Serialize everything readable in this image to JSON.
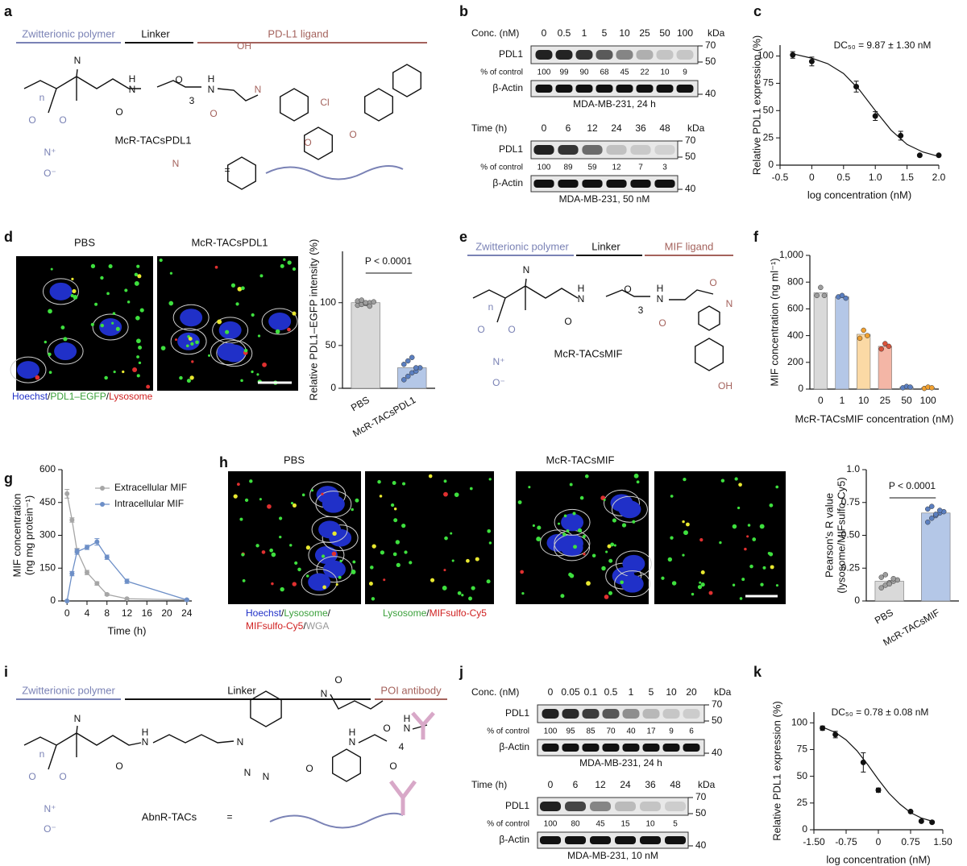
{
  "panels": [
    "a",
    "b",
    "c",
    "d",
    "e",
    "f",
    "g",
    "h",
    "i",
    "j",
    "k"
  ],
  "structures": [
    {
      "headers": [
        "Zwitterionic polymer",
        "Linker",
        "PD-L1 ligand"
      ],
      "name": "McR-TACsPDL1",
      "atoms": [
        "n",
        "N",
        "O",
        "O",
        "O",
        "N",
        "H",
        "O",
        "3",
        "N",
        "H",
        "O",
        "OH",
        "N",
        "Cl",
        "O",
        "O",
        "N",
        "N⁺",
        "O⁻",
        "="
      ]
    },
    {
      "headers": [
        "Zwitterionic polymer",
        "Linker",
        "MIF ligand"
      ],
      "name": "McR-TACsMIF",
      "atoms": [
        "n",
        "N",
        "O",
        "O",
        "O",
        "N",
        "H",
        "O",
        "3",
        "N",
        "H",
        "O",
        "O",
        "N",
        "OH",
        "N⁺",
        "O⁻"
      ]
    },
    {
      "headers": [
        "Zwitterionic polymer",
        "Linker",
        "POI antibody"
      ],
      "name": "AbnR-TACs",
      "atoms": [
        "n",
        "N",
        "O",
        "O",
        "O",
        "N",
        "H",
        "N",
        "N",
        "N",
        "N",
        "O",
        "O",
        "N",
        "H",
        "O",
        "4",
        "O",
        "N",
        "H",
        "N⁺",
        "O⁻",
        "="
      ]
    }
  ],
  "blots": [
    {
      "header": "Conc. (nM)",
      "lanes": [
        0,
        0.5,
        1,
        5,
        10,
        25,
        50,
        100
      ],
      "unit": "kDa",
      "target": "PDL1",
      "percent_label": "% of control",
      "percents": [
        100,
        99,
        90,
        68,
        45,
        22,
        10,
        9
      ],
      "loading": "β-Actin",
      "caption": "MDA-MB-231, 24 h",
      "markers": [
        70,
        50,
        40
      ]
    },
    {
      "header": "Time (h)",
      "lanes": [
        0,
        6,
        12,
        24,
        36,
        48
      ],
      "unit": "kDa",
      "target": "PDL1",
      "percent_label": "% of control",
      "percents": [
        100,
        89,
        59,
        12,
        7,
        3
      ],
      "loading": "β-Actin",
      "caption": "MDA-MB-231, 50 nM",
      "markers": [
        70,
        50,
        40
      ]
    },
    {
      "header": "Conc. (nM)",
      "lanes": [
        0,
        0.05,
        0.1,
        0.5,
        1,
        5,
        10,
        20
      ],
      "unit": "kDa",
      "target": "PDL1",
      "percent_label": "% of control",
      "percents": [
        100,
        95,
        85,
        70,
        40,
        17,
        9,
        6
      ],
      "loading": "β-Actin",
      "caption": "MDA-MB-231, 24 h",
      "markers": [
        70,
        50,
        40
      ]
    },
    {
      "header": "Time (h)",
      "lanes": [
        0,
        6,
        12,
        24,
        36,
        48
      ],
      "unit": "kDa",
      "target": "PDL1",
      "percent_label": "% of control",
      "percents": [
        100,
        80,
        45,
        15,
        10,
        5
      ],
      "loading": "β-Actin",
      "caption": "MDA-MB-231, 10 nM",
      "markers": [
        70,
        50,
        40
      ]
    }
  ],
  "microscopy": {
    "d": {
      "titles": [
        "PBS",
        "McR-TACsPDL1"
      ],
      "captions": [
        [
          "Hoechst",
          "/",
          "PDL1–EGFP",
          "/",
          "Lysosome"
        ]
      ]
    },
    "h": {
      "titles": [
        "PBS",
        "McR-TACsMIF"
      ],
      "captions": [
        [
          "Hoechst",
          "/",
          "Lysosome",
          "/"
        ],
        [
          "MIFsulfo-Cy5",
          "/",
          "WGA"
        ],
        [
          "Lysosome",
          "/",
          "MIFsulfo-Cy5"
        ]
      ]
    }
  },
  "chart_data": [
    {
      "type": "scatter",
      "xlabel": "log concentration (nM)",
      "ylabel": "Relative PDL1 expression (%)",
      "annotation": "DC₅₀ = 9.87 ± 1.30 nM",
      "x": [
        -0.3,
        0,
        0.7,
        1,
        1.4,
        1.7,
        2
      ],
      "values": [
        101,
        95,
        72,
        45,
        27,
        9,
        9
      ],
      "errors": [
        3,
        4,
        5,
        4,
        4,
        1,
        1
      ],
      "color": "#111111",
      "fit": {
        "x": [
          -0.3,
          0,
          0.25,
          0.5,
          0.75,
          1,
          1.25,
          1.5,
          1.75,
          2
        ],
        "values": [
          102,
          98,
          93,
          84,
          69,
          50,
          32,
          19,
          12,
          8
        ]
      },
      "xlim": [
        -0.5,
        2
      ],
      "xticks": [
        -0.5,
        0,
        0.5,
        {
          "value": 1,
          "label": "1.0"
        },
        1.5,
        {
          "value": 2,
          "label": "2.0"
        }
      ],
      "ylim": [
        0,
        110
      ],
      "yticks": [
        0,
        25,
        50,
        75,
        100
      ]
    },
    {
      "type": "bar",
      "ylabel": "Relative PDL1–EGFP intensity (%)",
      "annotation": "P < 0.0001",
      "categories": [
        "PBS",
        "McR-TACsPDL1"
      ],
      "values": [
        100,
        24
      ],
      "colors": [
        "#d9d9d9",
        "#b4c7e7"
      ],
      "point_colors": [
        "#9e9e9e",
        "#5b7fc0"
      ],
      "points": [
        [
          97,
          98,
          99,
          100,
          101,
          102,
          103,
          100,
          96
        ],
        [
          10,
          14,
          18,
          20,
          24,
          28,
          32,
          36,
          24
        ]
      ],
      "ylim": [
        0,
        160
      ],
      "yticks": [
        0,
        50,
        100
      ]
    },
    {
      "type": "bar",
      "xlabel": "McR-TACsMIF concentration (nM)",
      "ylabel": "MIF concentration (ng ml⁻¹)",
      "categories": [
        "0",
        "1",
        "10",
        "25",
        "50",
        "100"
      ],
      "values": [
        720,
        690,
        410,
        320,
        15,
        10
      ],
      "colors": [
        "#d9d9d9",
        "#b4c7e7",
        "#fbd9a5",
        "#f4b6a6",
        "#b4c7e7",
        "#fbd9a5"
      ],
      "point_colors": [
        "#9e9e9e",
        "#5b7fc0",
        "#f0a030",
        "#d9533b",
        "#5b7fc0",
        "#f0a030"
      ],
      "points": [
        [
          700,
          760,
          700
        ],
        [
          690,
          700,
          680
        ],
        [
          380,
          440,
          400
        ],
        [
          300,
          340,
          320
        ],
        [
          10,
          20,
          15
        ],
        [
          5,
          15,
          10
        ]
      ],
      "ylim": [
        0,
        1000
      ],
      "yticks": [
        0,
        200,
        400,
        600,
        800,
        {
          "value": 1000,
          "label": "1,000"
        }
      ]
    },
    {
      "type": "line",
      "xlabel": "Time (h)",
      "ylabel": [
        "MIF concentration",
        "(ng mg protein⁻¹)"
      ],
      "legend": "upper right",
      "x": [
        0,
        1,
        2,
        4,
        6,
        8,
        12,
        24
      ],
      "series": [
        {
          "name": "Extracellular MIF",
          "color": "#a6a6a6",
          "values": [
            490,
            370,
            230,
            130,
            80,
            30,
            10,
            5
          ],
          "errors": [
            20,
            10,
            10,
            10,
            8,
            5,
            3,
            3
          ]
        },
        {
          "name": "Intracellular MIF",
          "color": "#6d8fc7",
          "values": [
            0,
            125,
            225,
            245,
            270,
            200,
            90,
            5
          ],
          "errors": [
            0,
            10,
            12,
            10,
            15,
            10,
            10,
            3
          ]
        }
      ],
      "xlim": [
        -1,
        25
      ],
      "xticks": [
        0,
        4,
        8,
        12,
        16,
        20,
        24
      ],
      "ylim": [
        0,
        600
      ],
      "yticks": [
        0,
        150,
        300,
        450,
        600
      ]
    },
    {
      "type": "bar",
      "ylabel": [
        "Pearson's R value",
        "(lysosome/MIFsulfo-Cy5)"
      ],
      "annotation": "P < 0.0001",
      "categories": [
        "PBS",
        "McR-TACsMIF"
      ],
      "values": [
        0.15,
        0.67
      ],
      "colors": [
        "#d9d9d9",
        "#b4c7e7"
      ],
      "point_colors": [
        "#9e9e9e",
        "#5b7fc0"
      ],
      "points": [
        [
          0.1,
          0.12,
          0.14,
          0.15,
          0.16,
          0.18,
          0.2,
          0.13,
          0.17
        ],
        [
          0.6,
          0.63,
          0.65,
          0.67,
          0.68,
          0.7,
          0.72,
          0.66,
          0.69
        ]
      ],
      "ylim": [
        0,
        1
      ],
      "yticks": [
        0,
        0.25,
        {
          "value": 0.5,
          "label": "0.50"
        },
        0.75,
        {
          "value": 1,
          "label": "1.0"
        }
      ]
    },
    {
      "type": "scatter",
      "xlabel": "log concentration (nM)",
      "ylabel": "Relative PDL1 expression (%)",
      "annotation": "DC₅₀ = 0.78 ± 0.08 nM",
      "x": [
        -1.3,
        -1,
        -0.35,
        0,
        0.75,
        1,
        1.25
      ],
      "values": [
        95,
        89,
        63,
        37,
        17,
        8,
        7
      ],
      "errors": [
        2,
        3,
        9,
        2,
        1,
        1,
        1
      ],
      "color": "#111111",
      "fit": {
        "x": [
          -1.3,
          -1,
          -0.75,
          -0.5,
          -0.25,
          0,
          0.25,
          0.5,
          0.75,
          1,
          1.25
        ],
        "values": [
          96,
          91,
          84,
          74,
          61,
          47,
          34,
          24,
          16,
          11,
          8
        ]
      },
      "xlim": [
        -1.5,
        1.5
      ],
      "xticks": [
        {
          "value": -1.5,
          "label": "-1.50"
        },
        -0.75,
        0,
        0.75,
        {
          "value": 1.5,
          "label": "1.50"
        }
      ],
      "ylim": [
        0,
        110
      ],
      "yticks": [
        0,
        25,
        50,
        75,
        100
      ]
    }
  ]
}
